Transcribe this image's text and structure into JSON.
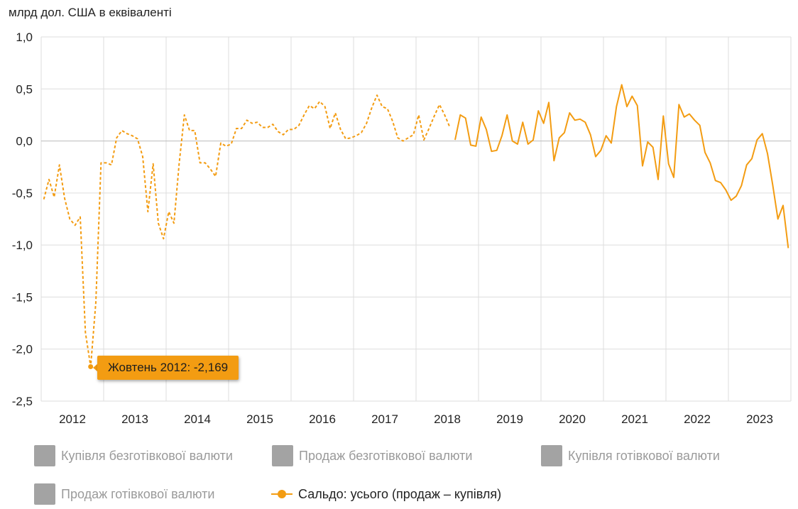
{
  "unit_label": "млрд дол. США в еквіваленті",
  "tooltip": {
    "text": "Жовтень 2012: -2,169"
  },
  "legend": {
    "items": [
      {
        "label": "Купівля безготівкової валюти",
        "active": false,
        "color": "#a3a3a3"
      },
      {
        "label": "Продаж безготівкової валюти",
        "active": false,
        "color": "#a3a3a3"
      },
      {
        "label": "Купівля готівкової валюти",
        "active": false,
        "color": "#a3a3a3"
      },
      {
        "label": "Продаж готівкової валюти",
        "active": false,
        "color": "#a3a3a3"
      },
      {
        "label": "Сальдо: усього (продаж – купівля)",
        "active": true,
        "color": "#f39c12"
      }
    ]
  },
  "chart_data": {
    "type": "line",
    "title": "",
    "xlabel": "",
    "ylabel": "млрд дол. США в еквіваленті",
    "ylim": [
      -2.5,
      1.0
    ],
    "y_ticks": [
      "1,0",
      "0,5",
      "0,0",
      "-0,5",
      "-1,0",
      "-1,5",
      "-2,0",
      "-2,5"
    ],
    "y_tick_values": [
      1.0,
      0.5,
      0.0,
      -0.5,
      -1.0,
      -1.5,
      -2.0,
      -2.5
    ],
    "x_ticks": [
      "2012",
      "2013",
      "2014",
      "2015",
      "2016",
      "2017",
      "2018",
      "2019",
      "2020",
      "2021",
      "2022",
      "2023"
    ],
    "grid": true,
    "legend_position": "bottom",
    "colors": {
      "series": "#f39c12",
      "grid": "#dddddd",
      "zero_line": "#bbbbbb"
    },
    "series": [
      {
        "name": "Сальдо: усього (продаж – купівля)",
        "start": "2012-01",
        "dashed_through": "2018-07",
        "values": [
          -0.56,
          -0.37,
          -0.54,
          -0.23,
          -0.55,
          -0.75,
          -0.81,
          -0.73,
          -1.84,
          -2.169,
          -1.55,
          -0.21,
          -0.21,
          -0.23,
          0.03,
          0.1,
          0.07,
          0.05,
          0.02,
          -0.15,
          -0.68,
          -0.22,
          -0.79,
          -0.94,
          -0.68,
          -0.79,
          -0.22,
          0.25,
          0.1,
          0.1,
          -0.21,
          -0.21,
          -0.27,
          -0.34,
          -0.02,
          -0.05,
          -0.03,
          0.12,
          0.12,
          0.2,
          0.17,
          0.18,
          0.13,
          0.13,
          0.16,
          0.09,
          0.06,
          0.11,
          0.11,
          0.15,
          0.25,
          0.34,
          0.31,
          0.38,
          0.33,
          0.12,
          0.27,
          0.11,
          0.02,
          0.03,
          0.05,
          0.08,
          0.17,
          0.32,
          0.44,
          0.33,
          0.31,
          0.19,
          0.03,
          0.0,
          0.03,
          0.06,
          0.25,
          0.01,
          0.12,
          0.24,
          0.35,
          0.25,
          0.13,
          0.01,
          0.25,
          0.22,
          -0.04,
          -0.05,
          0.23,
          0.11,
          -0.1,
          -0.09,
          0.05,
          0.25,
          0.0,
          -0.03,
          0.18,
          -0.03,
          0.01,
          0.29,
          0.17,
          0.37,
          -0.19,
          0.03,
          0.08,
          0.27,
          0.2,
          0.21,
          0.18,
          0.06,
          -0.15,
          -0.09,
          0.05,
          -0.02,
          0.33,
          0.54,
          0.33,
          0.43,
          0.34,
          -0.24,
          -0.01,
          -0.06,
          -0.37,
          0.24,
          -0.22,
          -0.35,
          0.35,
          0.23,
          0.26,
          0.2,
          0.15,
          -0.11,
          -0.21,
          -0.38,
          -0.4,
          -0.47,
          -0.57,
          -0.53,
          -0.43,
          -0.23,
          -0.17,
          0.01,
          0.07,
          -0.12,
          -0.42,
          -0.75,
          -0.62,
          -1.03
        ]
      }
    ],
    "annotations": [
      {
        "label": "Жовтень 2012: -2,169",
        "x": "2012-10",
        "y": -2.169
      }
    ]
  }
}
